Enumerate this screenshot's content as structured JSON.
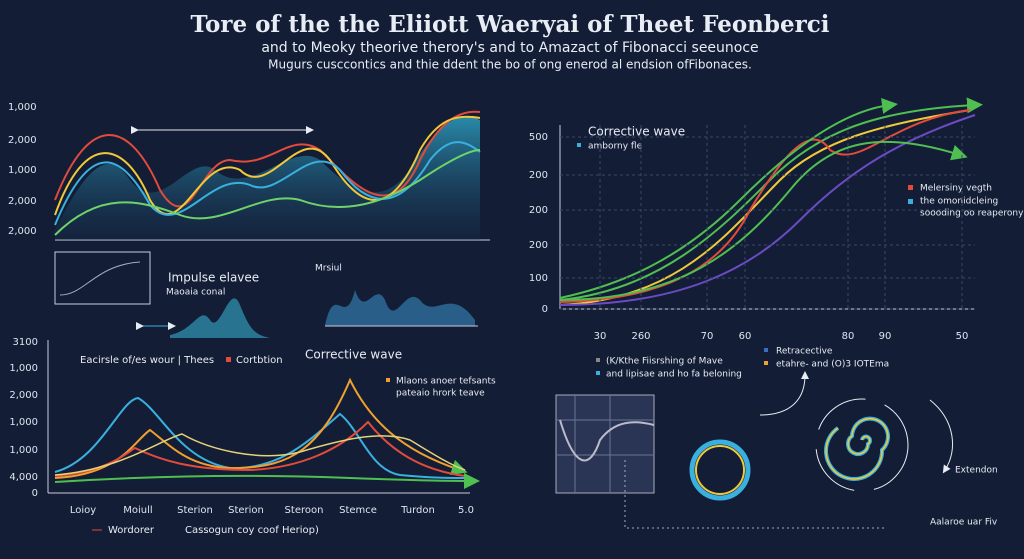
{
  "header": {
    "title": "Tore of the the Eliiott Waeryai of Theet Feonberci",
    "subtitle": "and to Meoky theorive therory's and to Amazact of Fibonacci seeunoce",
    "caption": "Mugurs cusccontics and thie ddent the bo of ong enerod al endsion ofFibonaces."
  },
  "top_left": {
    "yticks": [
      "1,000",
      "2,000",
      "1,000",
      "2,000",
      "2,000"
    ],
    "inset_title": "Impulse elavee",
    "inset_note": "Maoaia conal",
    "wave_label": "Mrsiul"
  },
  "right_chart": {
    "title": "Corrective wave",
    "note": "amborny fle",
    "yticks": [
      "500",
      "200",
      "200",
      "200",
      "100",
      "0"
    ],
    "xticks": [
      "30",
      "260",
      "70",
      "60",
      "80",
      "90",
      "50"
    ],
    "legend": [
      "Melersiny vegth",
      "the omonidcleing",
      "soooding oo reaperony"
    ],
    "bottom_legend": [
      "(K/Kthe Fiisrshing of Mave",
      "and lipisae and ho fa beloning",
      "Retracective",
      "etahre- and (O)3 IOTEma"
    ]
  },
  "bottom_left": {
    "yticks": [
      "3100",
      "1,000",
      "2,000",
      "1,000",
      "1,000",
      "4,000",
      "0"
    ],
    "legend": [
      "Eacirsle of/es wour | Thees",
      "Cortbtion"
    ],
    "wave_label": "Corrective wave",
    "note": [
      "Mlaons anoer tefsants",
      "pateaio hrork teave"
    ],
    "xticks": [
      "Loioy",
      "Moiull",
      "Sterion",
      "Sterion",
      "Steroon",
      "Stemce",
      "Turdon",
      "5.0"
    ],
    "bottom_legend": [
      "Wordorer",
      "Cassogun  coy coof Heriop)"
    ]
  },
  "spiral": {
    "label": "Extendon",
    "note": "Aalaroe uar Fiv"
  }
}
